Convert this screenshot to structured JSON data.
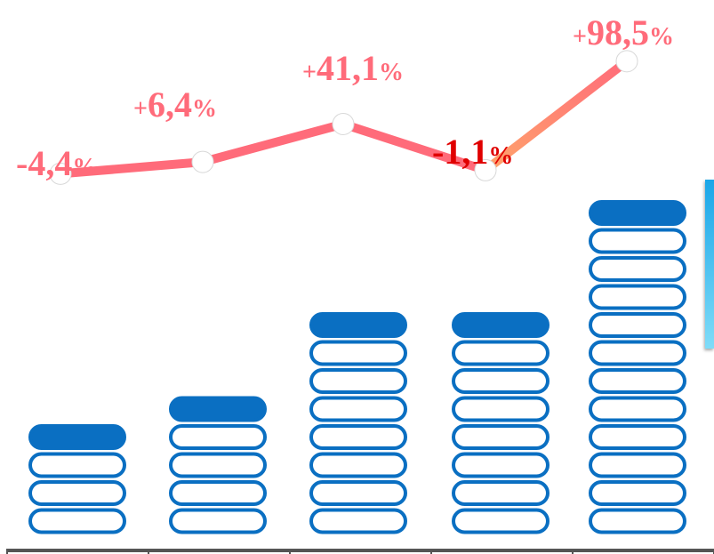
{
  "chart_data": {
    "type": "bar",
    "categories": [
      "",
      "",
      "",
      "",
      ""
    ],
    "series": [
      {
        "values": [
          4,
          5,
          8,
          8,
          12
        ]
      },
      {
        "values": [
          -4.4,
          6.4,
          41.1,
          -1.1,
          98.5
        ]
      }
    ],
    "data_labels": [
      "-4,4%",
      "+6,4%",
      "+41,1%",
      "-1,1%",
      "+98,5%"
    ],
    "colors": {
      "bar_fill": "#0a6fc2",
      "bar_stroke": "#0a6fc2",
      "line": "#ff6b7a",
      "line_highlight": "#ffa46b",
      "label": "#ff6b7a",
      "label_highlight": "#e00000",
      "axis": "#555555",
      "panel": "#1aa6e8"
    }
  }
}
